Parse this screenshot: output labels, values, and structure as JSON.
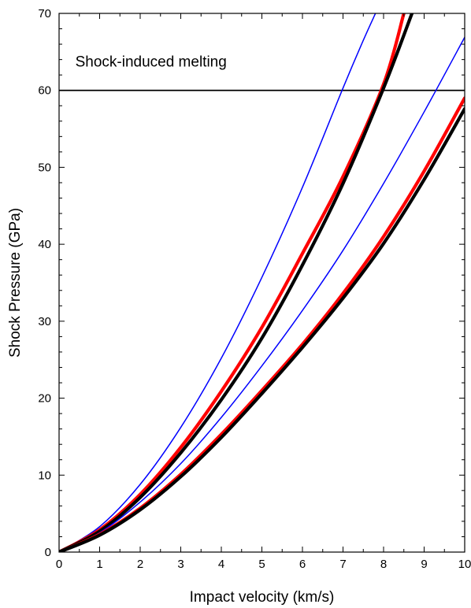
{
  "chart_data": {
    "type": "line",
    "title": "",
    "xlabel": "Impact velocity (km/s)",
    "ylabel": "Shock Pressure (GPa)",
    "xlim": [
      0,
      10
    ],
    "ylim": [
      0,
      70
    ],
    "x_ticks": [
      0,
      1,
      2,
      3,
      4,
      5,
      6,
      7,
      8,
      9,
      10
    ],
    "y_ticks": [
      0,
      10,
      20,
      30,
      40,
      50,
      60,
      70
    ],
    "grid": false,
    "legend": "none",
    "annotations": [
      {
        "text": "Shock-induced melting",
        "x": 0.4,
        "y": 63.1
      }
    ],
    "reference_lines": [
      {
        "orientation": "horizontal",
        "y": 60,
        "color": "#000000"
      }
    ],
    "series": [
      {
        "color": "#0000ff",
        "width": "thin",
        "x": [
          0,
          1,
          2,
          3,
          4,
          5,
          6,
          7,
          7.5,
          7.8
        ],
        "y": [
          0,
          3.3,
          8.8,
          16.2,
          25.2,
          35.7,
          47.4,
          60.3,
          66.5,
          70
        ]
      },
      {
        "color": "#ff0000",
        "width": "thick",
        "x": [
          0,
          1,
          2,
          3,
          4,
          5,
          6,
          7,
          8,
          8.5
        ],
        "y": [
          0,
          2.9,
          7.5,
          13.6,
          20.9,
          29.2,
          38.8,
          48.8,
          60.8,
          70
        ]
      },
      {
        "color": "#000000",
        "width": "thick",
        "x": [
          0,
          1,
          2,
          3,
          4,
          5,
          6,
          7,
          8,
          8.7
        ],
        "y": [
          0,
          2.7,
          7.1,
          12.9,
          19.8,
          27.8,
          37.3,
          47.9,
          60.3,
          70
        ]
      },
      {
        "color": "#0000ff",
        "width": "thin",
        "x": [
          0,
          1,
          2,
          3,
          4,
          5,
          6,
          7,
          8,
          9,
          10
        ],
        "y": [
          0,
          2.5,
          6.5,
          11.5,
          17.5,
          24.2,
          31.4,
          39.2,
          47.9,
          57.2,
          66.9
        ]
      },
      {
        "color": "#ff0000",
        "width": "thick",
        "x": [
          0,
          1,
          2,
          3,
          4,
          5,
          6,
          7,
          8,
          9,
          10
        ],
        "y": [
          0,
          2.3,
          5.7,
          10.1,
          15.3,
          21.0,
          27.0,
          33.6,
          41.0,
          49.5,
          59.0
        ]
      },
      {
        "color": "#000000",
        "width": "thick",
        "x": [
          0,
          1,
          2,
          3,
          4,
          5,
          6,
          7,
          8,
          9,
          10
        ],
        "y": [
          0,
          2.2,
          5.5,
          9.8,
          14.9,
          20.6,
          26.6,
          33.0,
          40.1,
          48.4,
          57.6
        ]
      }
    ]
  }
}
